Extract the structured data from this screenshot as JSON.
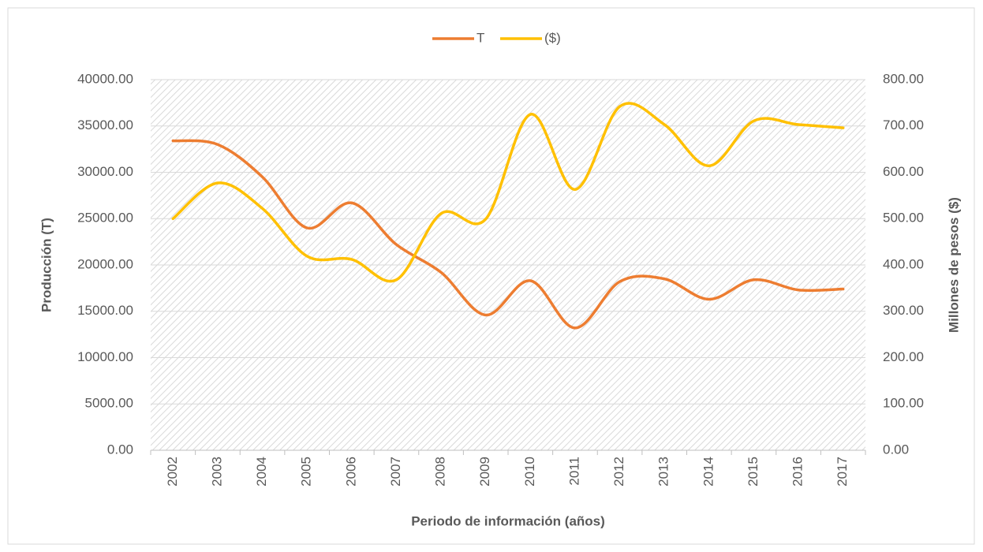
{
  "chart_data": {
    "type": "line",
    "x_label": "Periodo de información (años)",
    "y_label": "Producción (T)",
    "y2_label": "Millones de pesos ($)",
    "categories": [
      "2002",
      "2003",
      "2004",
      "2005",
      "2006",
      "2007",
      "2008",
      "2009",
      "2010",
      "2011",
      "2012",
      "2013",
      "2014",
      "2015",
      "2016",
      "2017"
    ],
    "series": [
      {
        "name": "T",
        "color": "#ed7d31",
        "axis": "y",
        "values": [
          33400,
          33000,
          29500,
          24000,
          26700,
          22200,
          19200,
          14600,
          18300,
          13200,
          18200,
          18500,
          16300,
          18400,
          17300,
          17400
        ]
      },
      {
        "name": "($)",
        "color": "#ffc000",
        "axis": "y2",
        "values": [
          500,
          577,
          522,
          419,
          412,
          368,
          511,
          499,
          725,
          563,
          742,
          703,
          614,
          711,
          703,
          696
        ]
      }
    ],
    "ylim": [
      0,
      40000
    ],
    "yticks": [
      {
        "value": 0,
        "label": "0.00"
      },
      {
        "value": 5000,
        "label": "5000.00"
      },
      {
        "value": 10000,
        "label": "10000.00"
      },
      {
        "value": 15000,
        "label": "15000.00"
      },
      {
        "value": 20000,
        "label": "20000.00"
      },
      {
        "value": 25000,
        "label": "25000.00"
      },
      {
        "value": 30000,
        "label": "30000.00"
      },
      {
        "value": 35000,
        "label": "35000.00"
      },
      {
        "value": 40000,
        "label": "40000.00"
      }
    ],
    "y2lim": [
      0,
      800
    ],
    "y2ticks": [
      {
        "value": 0,
        "label": "0.00"
      },
      {
        "value": 100,
        "label": "100.00"
      },
      {
        "value": 200,
        "label": "200.00"
      },
      {
        "value": 300,
        "label": "300.00"
      },
      {
        "value": 400,
        "label": "400.00"
      },
      {
        "value": 500,
        "label": "500.00"
      },
      {
        "value": 600,
        "label": "600.00"
      },
      {
        "value": 700,
        "label": "700.00"
      },
      {
        "value": 800,
        "label": "800.00"
      }
    ],
    "grid": true,
    "legend": "top",
    "smooth": true
  }
}
